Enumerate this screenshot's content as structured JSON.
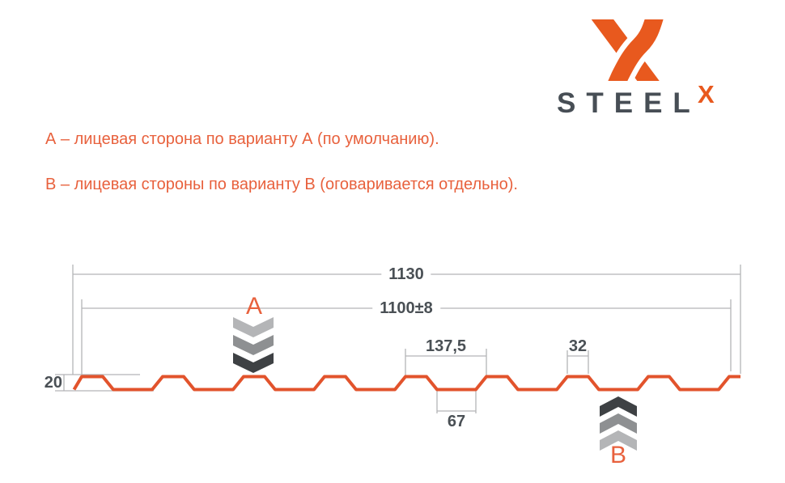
{
  "logo": {
    "steel_text": "STEEL",
    "x_mark": "X",
    "orange": "#E8591E",
    "dark": "#474E55"
  },
  "legend": {
    "line_a": "А – лицевая сторона по варианту А (по умолчанию).",
    "line_b": "В – лицевая стороны по варианту В (оговаривается отдельно).",
    "color": "#E8613D"
  },
  "drawing": {
    "dimensions": {
      "total_width": "1130",
      "working_width": "1100±8",
      "rib_pitch": "137,5",
      "rib_top": "32",
      "valley_width": "67",
      "profile_height": "20"
    },
    "marker_a": "А",
    "marker_b": "В",
    "profile_mm": {
      "total_width": 1130,
      "working_width": 1100,
      "working_tolerance": 8,
      "rib_pitch": 137.5,
      "rib_top_width": 32,
      "valley_width": 67,
      "profile_height": 20,
      "rib_count": 9
    },
    "colors": {
      "profile": "#E2532C",
      "dim_line": "#B4B5B7",
      "dim_text": "#4A5055",
      "marker_letter": "#E8613D",
      "chevron_light": "#B4B5B7",
      "chevron_mid": "#8E9092",
      "chevron_dark": "#3E4144"
    }
  }
}
